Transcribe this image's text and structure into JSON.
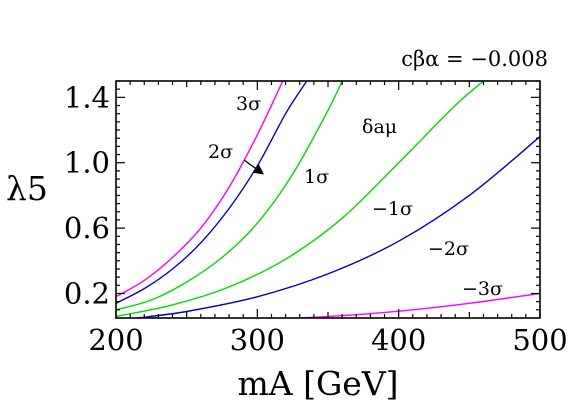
{
  "chart_data": {
    "type": "line",
    "title": "cβα = −0.008",
    "xlabel": "mA [GeV]",
    "ylabel": "λ5",
    "xlim": [
      200,
      500
    ],
    "ylim": [
      0.05,
      1.5
    ],
    "x_ticks": [
      200,
      300,
      400,
      500
    ],
    "x_tick_labels": [
      "200",
      "300",
      "400",
      "500"
    ],
    "y_ticks": [
      0.2,
      0.6,
      1.0,
      1.4
    ],
    "y_tick_labels": [
      "0.2",
      "0.6",
      "1.0",
      "1.4"
    ],
    "grid": false,
    "legend": "none",
    "series": [
      {
        "label": "3σ",
        "color": "#ff00ff",
        "x": [
          200,
          220,
          240,
          260,
          280,
          300,
          318
        ],
        "y": [
          0.18,
          0.28,
          0.42,
          0.6,
          0.85,
          1.17,
          1.5
        ]
      },
      {
        "label": "2σ",
        "color": "#0000cc",
        "x": [
          200,
          220,
          240,
          260,
          280,
          300,
          320,
          335
        ],
        "y": [
          0.14,
          0.23,
          0.35,
          0.51,
          0.72,
          0.98,
          1.3,
          1.5
        ]
      },
      {
        "label": "1σ",
        "color": "#00dd00",
        "x": [
          200,
          225,
          250,
          275,
          300,
          325,
          350,
          360
        ],
        "y": [
          0.1,
          0.16,
          0.27,
          0.42,
          0.63,
          0.93,
          1.32,
          1.5
        ]
      },
      {
        "label": "−1σ",
        "color": "#00dd00",
        "x": [
          200,
          240,
          280,
          320,
          360,
          400,
          440,
          460
        ],
        "y": [
          0.06,
          0.13,
          0.24,
          0.41,
          0.66,
          1.0,
          1.35,
          1.5
        ]
      },
      {
        "label": "−2σ",
        "color": "#0000cc",
        "x": [
          215,
          250,
          300,
          350,
          400,
          450,
          500
        ],
        "y": [
          0.05,
          0.09,
          0.18,
          0.32,
          0.52,
          0.8,
          1.16
        ]
      },
      {
        "label": "−3σ",
        "color": "#ff00ff",
        "x": [
          330,
          370,
          410,
          450,
          500
        ],
        "y": [
          0.05,
          0.07,
          0.1,
          0.14,
          0.2
        ]
      }
    ],
    "annotations": {
      "region_label": "δaμ",
      "s3": "3σ",
      "s2": "2σ",
      "s1": "1σ",
      "m1": "−1σ",
      "m2": "−2σ",
      "m3": "−3σ"
    }
  }
}
